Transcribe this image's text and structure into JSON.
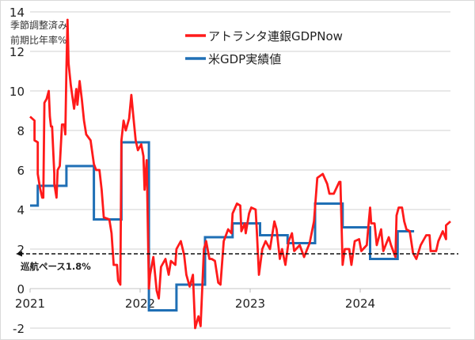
{
  "chart_data": {
    "type": "line",
    "title": "",
    "ylabel_lines": [
      "季節調整済み",
      "前期比年率%"
    ],
    "xlabel": "",
    "ylim": [
      -2,
      14
    ],
    "yticks": [
      -2,
      0,
      2,
      4,
      6,
      8,
      10,
      12,
      14
    ],
    "xlim": [
      2021,
      2024.82
    ],
    "xticks": [
      2021,
      2022,
      2023,
      2024
    ],
    "grid": true,
    "legend_position": "top-right",
    "colors": {
      "gdpnow": "#ff1a1a",
      "actual": "#1f6fb5",
      "cruise": "#111111"
    },
    "reference_line": {
      "value": 1.8,
      "label": "巡航ペース1.8%",
      "style": "dashed"
    },
    "series": [
      {
        "name": "アトランタ連銀GDPNow",
        "type": "line",
        "points": [
          [
            2021.0,
            8.7
          ],
          [
            2021.04,
            8.5
          ],
          [
            2021.04,
            7.5
          ],
          [
            2021.07,
            7.4
          ],
          [
            2021.07,
            5.8
          ],
          [
            2021.09,
            5.1
          ],
          [
            2021.11,
            4.6
          ],
          [
            2021.12,
            4.6
          ],
          [
            2021.13,
            9.4
          ],
          [
            2021.15,
            9.6
          ],
          [
            2021.17,
            10.0
          ],
          [
            2021.18,
            8.7
          ],
          [
            2021.19,
            8.2
          ],
          [
            2021.2,
            8.2
          ],
          [
            2021.22,
            5.8
          ],
          [
            2021.22,
            5.3
          ],
          [
            2021.24,
            4.6
          ],
          [
            2021.25,
            6.0
          ],
          [
            2021.27,
            6.2
          ],
          [
            2021.29,
            8.3
          ],
          [
            2021.31,
            8.3
          ],
          [
            2021.32,
            7.8
          ],
          [
            2021.33,
            11.1
          ],
          [
            2021.34,
            13.6
          ],
          [
            2021.35,
            11.4
          ],
          [
            2021.37,
            10.3
          ],
          [
            2021.4,
            9.1
          ],
          [
            2021.42,
            10.1
          ],
          [
            2021.43,
            9.3
          ],
          [
            2021.45,
            10.5
          ],
          [
            2021.47,
            9.6
          ],
          [
            2021.49,
            8.5
          ],
          [
            2021.51,
            7.8
          ],
          [
            2021.55,
            7.5
          ],
          [
            2021.58,
            6.3
          ],
          [
            2021.6,
            6.0
          ],
          [
            2021.63,
            6.0
          ],
          [
            2021.65,
            5.0
          ],
          [
            2021.67,
            3.6
          ],
          [
            2021.72,
            3.5
          ],
          [
            2021.74,
            2.8
          ],
          [
            2021.76,
            1.2
          ],
          [
            2021.79,
            1.2
          ],
          [
            2021.8,
            0.4
          ],
          [
            2021.82,
            0.2
          ],
          [
            2021.83,
            7.5
          ],
          [
            2021.85,
            8.5
          ],
          [
            2021.87,
            8.0
          ],
          [
            2021.9,
            8.6
          ],
          [
            2021.92,
            9.8
          ],
          [
            2021.94,
            8.6
          ],
          [
            2021.96,
            7.5
          ],
          [
            2021.98,
            7.0
          ],
          [
            2022.01,
            7.3
          ],
          [
            2022.03,
            6.7
          ],
          [
            2022.04,
            5.0
          ],
          [
            2022.06,
            6.5
          ],
          [
            2022.08,
            0.0
          ],
          [
            2022.09,
            0.7
          ],
          [
            2022.12,
            1.6
          ],
          [
            2022.15,
            -0.1
          ],
          [
            2022.17,
            -0.5
          ],
          [
            2022.19,
            1.1
          ],
          [
            2022.23,
            1.5
          ],
          [
            2022.26,
            0.7
          ],
          [
            2022.28,
            1.4
          ],
          [
            2022.32,
            1.2
          ],
          [
            2022.33,
            2.0
          ],
          [
            2022.37,
            2.4
          ],
          [
            2022.4,
            1.7
          ],
          [
            2022.42,
            0.7
          ],
          [
            2022.45,
            0.1
          ],
          [
            2022.48,
            0.7
          ],
          [
            2022.5,
            -2.0
          ],
          [
            2022.53,
            -1.4
          ],
          [
            2022.55,
            -1.9
          ],
          [
            2022.58,
            2.0
          ],
          [
            2022.6,
            2.4
          ],
          [
            2022.63,
            1.5
          ],
          [
            2022.65,
            1.5
          ],
          [
            2022.68,
            1.4
          ],
          [
            2022.71,
            0.3
          ],
          [
            2022.73,
            0.2
          ],
          [
            2022.76,
            2.4
          ],
          [
            2022.8,
            3.0
          ],
          [
            2022.83,
            2.8
          ],
          [
            2022.84,
            3.8
          ],
          [
            2022.88,
            4.3
          ],
          [
            2022.91,
            4.2
          ],
          [
            2022.92,
            2.9
          ],
          [
            2022.95,
            3.3
          ],
          [
            2022.96,
            2.8
          ],
          [
            2022.99,
            3.8
          ],
          [
            2023.01,
            4.1
          ],
          [
            2023.05,
            4.0
          ],
          [
            2023.06,
            3.0
          ],
          [
            2023.08,
            0.7
          ],
          [
            2023.11,
            2.0
          ],
          [
            2023.14,
            2.4
          ],
          [
            2023.18,
            2.0
          ],
          [
            2023.22,
            3.4
          ],
          [
            2023.24,
            3.0
          ],
          [
            2023.27,
            1.5
          ],
          [
            2023.29,
            2.0
          ],
          [
            2023.32,
            1.2
          ],
          [
            2023.35,
            2.4
          ],
          [
            2023.38,
            2.8
          ],
          [
            2023.4,
            1.9
          ],
          [
            2023.45,
            2.2
          ],
          [
            2023.49,
            1.6
          ],
          [
            2023.54,
            2.3
          ],
          [
            2023.58,
            3.4
          ],
          [
            2023.61,
            5.6
          ],
          [
            2023.66,
            5.8
          ],
          [
            2023.7,
            5.3
          ],
          [
            2023.72,
            4.8
          ],
          [
            2023.76,
            4.8
          ],
          [
            2023.81,
            5.4
          ],
          [
            2023.82,
            5.4
          ],
          [
            2023.84,
            1.2
          ],
          [
            2023.86,
            2.0
          ],
          [
            2023.9,
            2.0
          ],
          [
            2023.92,
            1.2
          ],
          [
            2023.95,
            2.4
          ],
          [
            2023.99,
            2.5
          ],
          [
            2024.01,
            1.9
          ],
          [
            2024.06,
            2.2
          ],
          [
            2024.08,
            3.5
          ],
          [
            2024.09,
            4.1
          ],
          [
            2024.1,
            3.3
          ],
          [
            2024.13,
            3.3
          ],
          [
            2024.15,
            2.2
          ],
          [
            2024.19,
            3.0
          ],
          [
            2024.21,
            1.9
          ],
          [
            2024.26,
            2.6
          ],
          [
            2024.28,
            2.2
          ],
          [
            2024.32,
            1.6
          ],
          [
            2024.33,
            3.7
          ],
          [
            2024.35,
            4.1
          ],
          [
            2024.38,
            4.1
          ],
          [
            2024.4,
            3.4
          ],
          [
            2024.42,
            3.0
          ],
          [
            2024.45,
            2.9
          ],
          [
            2024.48,
            1.8
          ],
          [
            2024.51,
            1.5
          ],
          [
            2024.55,
            2.2
          ],
          [
            2024.6,
            2.7
          ],
          [
            2024.63,
            2.7
          ],
          [
            2024.64,
            1.9
          ],
          [
            2024.69,
            1.9
          ],
          [
            2024.71,
            2.4
          ],
          [
            2024.75,
            2.9
          ],
          [
            2024.78,
            2.5
          ],
          [
            2024.78,
            3.2
          ],
          [
            2024.82,
            3.4
          ]
        ]
      },
      {
        "name": "米GDP実績値",
        "type": "step",
        "steps": [
          [
            2021.0,
            2021.07,
            4.2
          ],
          [
            2021.07,
            2021.33,
            5.2
          ],
          [
            2021.33,
            2021.58,
            6.2
          ],
          [
            2021.58,
            2021.83,
            3.5
          ],
          [
            2021.83,
            2022.08,
            7.4
          ],
          [
            2022.08,
            2022.33,
            -1.1
          ],
          [
            2022.33,
            2022.59,
            0.2
          ],
          [
            2022.59,
            2022.84,
            2.6
          ],
          [
            2022.84,
            2023.09,
            3.3
          ],
          [
            2023.09,
            2023.34,
            2.7
          ],
          [
            2023.34,
            2023.59,
            2.3
          ],
          [
            2023.59,
            2023.84,
            4.3
          ],
          [
            2023.84,
            2024.09,
            3.1
          ],
          [
            2024.09,
            2024.34,
            1.5
          ],
          [
            2024.34,
            2024.49,
            2.9
          ]
        ]
      }
    ]
  }
}
